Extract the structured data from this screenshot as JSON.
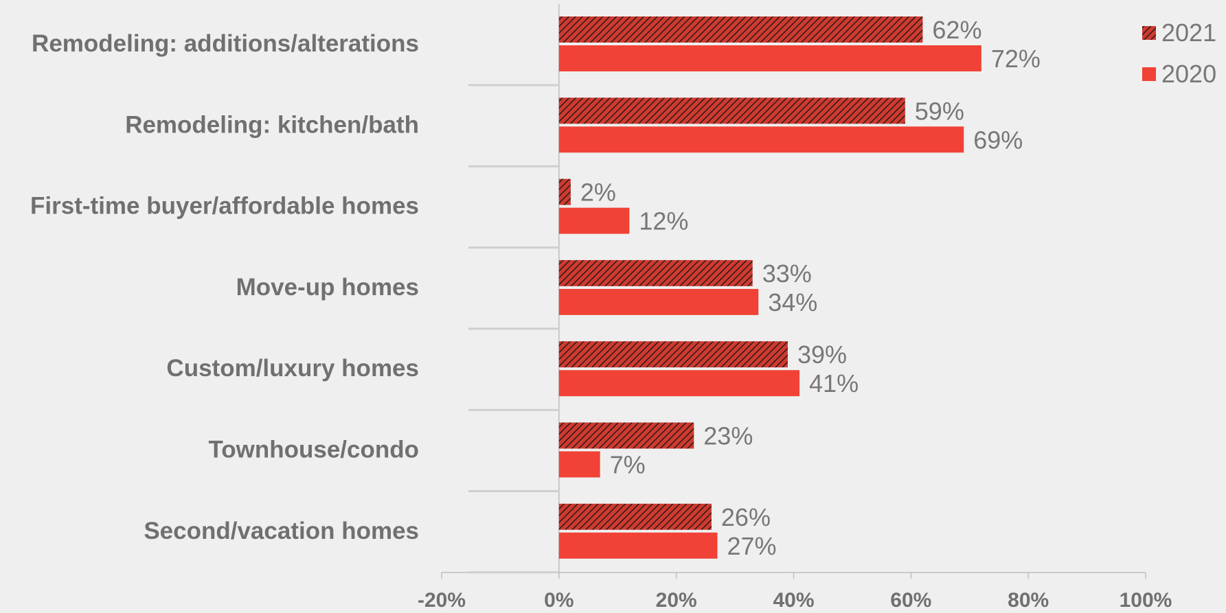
{
  "chart_data": {
    "type": "bar",
    "orientation": "horizontal",
    "categories": [
      "Remodeling: additions/alterations",
      "Remodeling: kitchen/bath",
      "First-time buyer/affordable homes",
      "Move-up homes",
      "Custom/luxury homes",
      "Townhouse/condo",
      "Second/vacation homes"
    ],
    "series": [
      {
        "name": "2021",
        "values": [
          62,
          59,
          2,
          33,
          39,
          23,
          26
        ],
        "labels": [
          "62%",
          "59%",
          "2%",
          "33%",
          "39%",
          "23%",
          "26%"
        ],
        "color": "#c8302a",
        "pattern": "diagonal-hatch"
      },
      {
        "name": "2020",
        "values": [
          72,
          69,
          12,
          34,
          41,
          7,
          27
        ],
        "labels": [
          "72%",
          "69%",
          "12%",
          "34%",
          "41%",
          "7%",
          "27%"
        ],
        "color": "#f04236",
        "pattern": "solid"
      }
    ],
    "xlim": [
      -20,
      100
    ],
    "xticks": [
      -20,
      0,
      20,
      40,
      60,
      80,
      100
    ],
    "xtick_labels": [
      "-20%",
      "0%",
      "20%",
      "40%",
      "60%",
      "80%",
      "100%"
    ],
    "legend": {
      "position": "top-right",
      "entries": [
        "2021",
        "2020"
      ]
    },
    "grid": false,
    "title": "",
    "xlabel": "",
    "ylabel": ""
  }
}
